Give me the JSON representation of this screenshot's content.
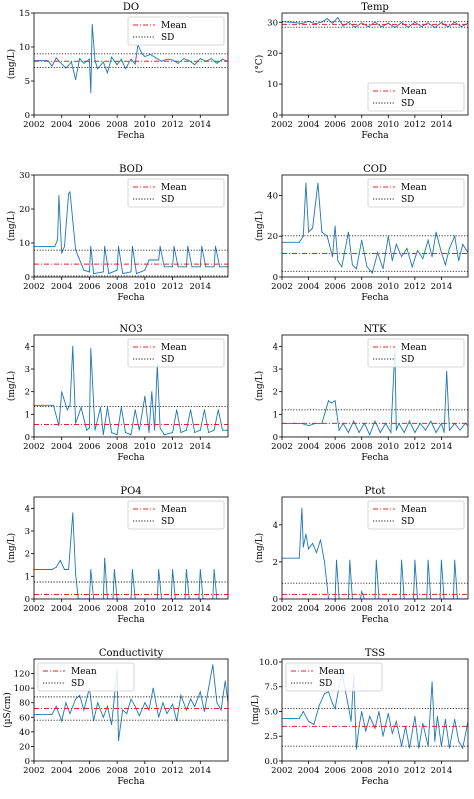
{
  "chart_data": [
    {
      "type": "line",
      "title": "DO",
      "xlabel": "Fecha",
      "ylabel": "(mg/L)",
      "xlim": [
        2002,
        2016
      ],
      "ylim": [
        0,
        15
      ],
      "xticks": [
        "2002",
        "2004",
        "2006",
        "2008",
        "2010",
        "2012",
        "2014"
      ],
      "yticks": [
        "0",
        "5",
        "10",
        "15"
      ],
      "x": [
        2002.0,
        2003.0,
        2003.3,
        2003.6,
        2004.0,
        2004.3,
        2004.7,
        2005.0,
        2005.3,
        2005.6,
        2006.0,
        2006.1,
        2006.2,
        2006.4,
        2006.6,
        2007.0,
        2007.3,
        2007.6,
        2008.0,
        2008.3,
        2008.6,
        2009.0,
        2009.3,
        2009.5,
        2009.8,
        2010.0,
        2010.4,
        2010.8,
        2011.2,
        2011.6,
        2012.0,
        2012.4,
        2012.8,
        2013.2,
        2013.6,
        2014.0,
        2014.4,
        2014.8,
        2015.2,
        2015.6,
        2016.0
      ],
      "y": [
        8.0,
        8.0,
        7.2,
        8.4,
        7.5,
        6.9,
        7.8,
        5.2,
        8.3,
        7.6,
        8.2,
        3.3,
        13.3,
        8.0,
        6.8,
        7.8,
        6.2,
        8.5,
        7.4,
        8.2,
        6.8,
        8.2,
        7.5,
        10.3,
        9.0,
        8.6,
        8.9,
        8.4,
        7.9,
        8.2,
        8.1,
        7.6,
        8.3,
        8.0,
        7.4,
        8.3,
        7.9,
        8.3,
        7.6,
        8.2,
        7.9
      ],
      "mean": 7.9,
      "sd_lines": [
        7.0,
        9.0
      ],
      "legend": {
        "entries": [
          "Mean",
          "SD"
        ],
        "position": "upper-right"
      }
    },
    {
      "type": "line",
      "title": "Temp",
      "xlabel": "Fecha",
      "ylabel": "(°C)",
      "xlim": [
        2002,
        2016
      ],
      "ylim": [
        0,
        33
      ],
      "xticks": [
        "2002",
        "2004",
        "2006",
        "2008",
        "2010",
        "2012",
        "2014"
      ],
      "yticks": [
        "0",
        "10",
        "20",
        "30"
      ],
      "x": [
        2002.0,
        2002.8,
        2003.5,
        2004.0,
        2004.5,
        2005.0,
        2005.4,
        2005.8,
        2006.2,
        2006.6,
        2007.0,
        2007.5,
        2008.0,
        2008.5,
        2009.0,
        2009.5,
        2010.0,
        2010.5,
        2011.0,
        2011.5,
        2012.0,
        2012.5,
        2013.0,
        2013.5,
        2014.0,
        2014.5,
        2015.0,
        2015.5,
        2016.0
      ],
      "y": [
        30.2,
        30.0,
        29.6,
        30.3,
        29.5,
        30.1,
        31.2,
        29.7,
        31.5,
        28.8,
        30.0,
        28.4,
        29.8,
        28.6,
        30.1,
        28.5,
        29.7,
        28.3,
        29.9,
        28.4,
        30.0,
        28.6,
        29.8,
        28.3,
        29.9,
        28.5,
        30.0,
        28.6,
        29.7
      ],
      "mean": 29.3,
      "sd_lines": [
        28.4,
        30.2
      ],
      "legend": {
        "entries": [
          "Mean",
          "SD"
        ],
        "position": "lower-right"
      }
    },
    {
      "type": "line",
      "title": "BOD",
      "xlabel": "Fecha",
      "ylabel": "(mg/L)",
      "xlim": [
        2002,
        2016
      ],
      "ylim": [
        0,
        30
      ],
      "xticks": [
        "2002",
        "2004",
        "2006",
        "2008",
        "2010",
        "2012",
        "2014"
      ],
      "yticks": [
        "0",
        "10",
        "20",
        "30"
      ],
      "x": [
        2002.0,
        2003.5,
        2003.7,
        2003.8,
        2004.0,
        2004.2,
        2004.5,
        2004.6,
        2005.0,
        2005.2,
        2005.6,
        2006.0,
        2006.1,
        2006.3,
        2007.0,
        2007.1,
        2007.4,
        2008.0,
        2008.1,
        2008.4,
        2009.0,
        2009.1,
        2009.4,
        2010.0,
        2010.3,
        2011.0,
        2011.1,
        2011.4,
        2012.0,
        2012.1,
        2012.4,
        2013.0,
        2013.1,
        2013.4,
        2014.0,
        2014.1,
        2014.4,
        2015.0,
        2015.1,
        2015.4,
        2016.0
      ],
      "y": [
        9.0,
        9.0,
        11.0,
        24.0,
        7.0,
        9.0,
        24.5,
        25.0,
        8.0,
        6.0,
        2.0,
        1.5,
        9.0,
        1.0,
        1.5,
        9.0,
        1.0,
        2.0,
        9.0,
        1.0,
        1.5,
        9.0,
        1.0,
        2.0,
        5.0,
        5.0,
        9.0,
        3.0,
        3.0,
        9.0,
        3.0,
        3.0,
        9.0,
        3.0,
        3.0,
        9.0,
        3.0,
        3.0,
        9.0,
        3.0,
        3.0
      ],
      "mean": 3.8,
      "sd_lines": [
        0.3,
        7.9
      ],
      "legend": {
        "entries": [
          "Mean",
          "SD"
        ],
        "position": "upper-right"
      }
    },
    {
      "type": "line",
      "title": "COD",
      "xlabel": "Fecha",
      "ylabel": "(mg/L)",
      "xlim": [
        2002,
        2016
      ],
      "ylim": [
        0,
        50
      ],
      "xticks": [
        "2002",
        "2004",
        "2006",
        "2008",
        "2010",
        "2012",
        "2014"
      ],
      "yticks": [
        "0",
        "20",
        "40"
      ],
      "x": [
        2002.0,
        2003.3,
        2003.6,
        2003.8,
        2004.0,
        2004.3,
        2004.7,
        2005.0,
        2005.4,
        2005.8,
        2006.0,
        2006.2,
        2006.5,
        2007.0,
        2007.3,
        2007.6,
        2008.0,
        2008.4,
        2008.8,
        2009.2,
        2009.6,
        2010.0,
        2010.3,
        2010.6,
        2011.0,
        2011.4,
        2011.8,
        2012.2,
        2012.6,
        2013.0,
        2013.3,
        2013.6,
        2014.0,
        2014.3,
        2014.6,
        2015.0,
        2015.3,
        2015.6,
        2016.0
      ],
      "y": [
        17.0,
        17.0,
        20.0,
        46.0,
        22.0,
        24.0,
        46.0,
        22.0,
        20.0,
        10.0,
        25.0,
        8.0,
        5.0,
        22.0,
        6.0,
        4.0,
        18.0,
        5.0,
        2.0,
        12.0,
        4.0,
        20.0,
        8.0,
        16.0,
        10.0,
        14.0,
        5.0,
        13.0,
        9.0,
        18.0,
        10.0,
        22.0,
        12.0,
        6.0,
        14.0,
        20.0,
        8.0,
        16.0,
        12.0
      ],
      "mean": 11.5,
      "sd_lines": [
        2.8,
        20.2
      ],
      "legend": {
        "entries": [
          "Mean",
          "SD"
        ],
        "position": "upper-right"
      }
    },
    {
      "type": "line",
      "title": "NO3",
      "xlabel": "Fecha",
      "ylabel": "(mg/L)",
      "xlim": [
        2002,
        2016
      ],
      "ylim": [
        0,
        4.5
      ],
      "xticks": [
        "2002",
        "2004",
        "2006",
        "2008",
        "2010",
        "2012",
        "2014"
      ],
      "yticks": [
        "0",
        "1",
        "2",
        "3",
        "4"
      ],
      "x": [
        2002.0,
        2003.4,
        2003.8,
        2004.0,
        2004.4,
        2004.6,
        2004.8,
        2005.0,
        2005.4,
        2005.8,
        2006.0,
        2006.1,
        2006.4,
        2006.8,
        2007.0,
        2007.3,
        2007.6,
        2008.0,
        2008.3,
        2008.6,
        2009.0,
        2009.3,
        2009.6,
        2010.0,
        2010.3,
        2010.5,
        2010.7,
        2010.9,
        2011.1,
        2011.4,
        2012.0,
        2012.3,
        2012.6,
        2013.0,
        2013.3,
        2013.6,
        2014.0,
        2014.3,
        2014.6,
        2015.0,
        2015.3,
        2015.6,
        2016.0
      ],
      "y": [
        1.4,
        1.4,
        0.5,
        2.0,
        1.2,
        1.4,
        4.0,
        0.6,
        1.3,
        0.3,
        0.4,
        3.9,
        0.3,
        1.3,
        0.1,
        1.3,
        0.2,
        0.1,
        1.3,
        0.2,
        0.1,
        1.2,
        0.3,
        1.8,
        0.2,
        2.0,
        0.3,
        3.2,
        0.4,
        0.1,
        0.2,
        1.2,
        0.2,
        0.3,
        1.2,
        0.2,
        0.3,
        1.2,
        0.2,
        0.3,
        1.2,
        0.3,
        0.3
      ],
      "mean": 0.55,
      "sd_lines": [
        0.0,
        1.35
      ],
      "legend": {
        "entries": [
          "Mean",
          "SD"
        ],
        "position": "upper-right"
      }
    },
    {
      "type": "line",
      "title": "NTK",
      "xlabel": "Fecha",
      "ylabel": "(mg/L)",
      "xlim": [
        2002,
        2016
      ],
      "ylim": [
        0,
        4.5
      ],
      "xticks": [
        "2002",
        "2004",
        "2006",
        "2008",
        "2010",
        "2012",
        "2014"
      ],
      "yticks": [
        "0",
        "1",
        "2",
        "3",
        "4"
      ],
      "x": [
        2002.0,
        2003.5,
        2004.0,
        2004.5,
        2005.0,
        2005.5,
        2005.7,
        2006.0,
        2006.3,
        2006.6,
        2007.0,
        2007.4,
        2007.8,
        2008.2,
        2008.6,
        2009.0,
        2009.4,
        2009.8,
        2010.2,
        2010.5,
        2010.6,
        2010.8,
        2011.2,
        2011.6,
        2012.0,
        2012.4,
        2012.8,
        2013.2,
        2013.6,
        2014.0,
        2014.2,
        2014.4,
        2014.6,
        2015.0,
        2015.4,
        2015.8,
        2016.0
      ],
      "y": [
        0.6,
        0.6,
        0.5,
        0.6,
        0.6,
        1.6,
        1.5,
        1.6,
        0.3,
        0.6,
        0.2,
        0.7,
        0.2,
        0.6,
        0.1,
        0.7,
        0.2,
        0.6,
        0.2,
        3.9,
        0.3,
        0.6,
        0.2,
        0.7,
        0.2,
        0.6,
        0.3,
        0.7,
        0.2,
        0.6,
        0.2,
        2.9,
        0.3,
        0.6,
        0.3,
        0.6,
        0.5
      ],
      "mean": 0.6,
      "sd_lines": [
        0.0,
        1.2
      ],
      "legend": {
        "entries": [
          "Mean",
          "SD"
        ],
        "position": "upper-right"
      }
    },
    {
      "type": "line",
      "title": "PO4",
      "xlabel": "Fecha",
      "ylabel": "(mg/L)",
      "xlim": [
        2002,
        2016
      ],
      "ylim": [
        0,
        4.5
      ],
      "xticks": [
        "2002",
        "2004",
        "2006",
        "2008",
        "2010",
        "2012",
        "2014"
      ],
      "yticks": [
        "0",
        "1",
        "2",
        "3",
        "4"
      ],
      "x": [
        2002.0,
        2003.3,
        2003.6,
        2003.9,
        2004.2,
        2004.5,
        2004.8,
        2005.0,
        2005.2,
        2006.0,
        2006.1,
        2006.3,
        2007.0,
        2007.1,
        2007.3,
        2007.7,
        2007.8,
        2008.0,
        2009.0,
        2009.1,
        2009.3,
        2010.9,
        2011.0,
        2011.2,
        2011.9,
        2012.0,
        2012.2,
        2012.9,
        2013.0,
        2013.2,
        2013.9,
        2014.0,
        2014.2,
        2014.9,
        2015.0,
        2015.2,
        2016.0
      ],
      "y": [
        1.3,
        1.3,
        1.4,
        1.7,
        1.3,
        1.3,
        3.8,
        1.1,
        0.0,
        0.0,
        1.3,
        0.0,
        0.0,
        1.8,
        0.0,
        0.0,
        1.3,
        0.0,
        0.0,
        1.3,
        0.0,
        0.0,
        1.3,
        0.0,
        0.0,
        1.3,
        0.0,
        0.0,
        1.3,
        0.0,
        0.0,
        1.3,
        0.0,
        0.0,
        1.3,
        0.0,
        0.0
      ],
      "mean": 0.2,
      "sd_lines": [
        0.0,
        0.75
      ],
      "legend": {
        "entries": [
          "Mean",
          "SD"
        ],
        "position": "upper-right"
      }
    },
    {
      "type": "line",
      "title": "Ptot",
      "xlabel": "Fecha",
      "ylabel": "(mg/L)",
      "xlim": [
        2002,
        2016
      ],
      "ylim": [
        0,
        5.5
      ],
      "xticks": [
        "2002",
        "2004",
        "2006",
        "2008",
        "2010",
        "2012",
        "2014"
      ],
      "yticks": [
        "0",
        "2",
        "4"
      ],
      "x": [
        2002.0,
        2003.3,
        2003.5,
        2003.6,
        2003.8,
        2004.0,
        2004.3,
        2004.6,
        2004.9,
        2005.2,
        2005.5,
        2006.0,
        2006.1,
        2006.3,
        2007.0,
        2007.1,
        2007.3,
        2007.9,
        2008.0,
        2008.2,
        2009.0,
        2009.1,
        2009.3,
        2010.9,
        2011.0,
        2011.2,
        2011.9,
        2012.0,
        2012.2,
        2012.9,
        2013.0,
        2013.2,
        2013.9,
        2014.0,
        2014.2,
        2014.9,
        2015.0,
        2015.2,
        2016.0
      ],
      "y": [
        2.2,
        2.2,
        4.9,
        2.8,
        3.5,
        2.7,
        3.0,
        2.5,
        3.2,
        2.0,
        0.0,
        0.0,
        2.1,
        0.0,
        0.0,
        2.1,
        0.0,
        0.0,
        0.4,
        0.0,
        0.0,
        2.1,
        0.0,
        0.0,
        2.1,
        0.0,
        0.0,
        2.1,
        0.0,
        0.0,
        2.1,
        0.0,
        0.0,
        2.1,
        0.0,
        0.0,
        2.1,
        0.0,
        0.0
      ],
      "mean": 0.25,
      "sd_lines": [
        0.0,
        0.85
      ],
      "legend": {
        "entries": [
          "Mean",
          "SD"
        ],
        "position": "upper-right"
      }
    },
    {
      "type": "line",
      "title": "Conductivity",
      "xlabel": "Fecha",
      "ylabel": "(µS/cm)",
      "xlim": [
        2002,
        2016
      ],
      "ylim": [
        0,
        140
      ],
      "xticks": [
        "2002",
        "2004",
        "2006",
        "2008",
        "2010",
        "2012",
        "2014"
      ],
      "yticks": [
        "0",
        "20",
        "40",
        "60",
        "80",
        "100",
        "120"
      ],
      "x": [
        2002.0,
        2003.3,
        2003.6,
        2004.0,
        2004.3,
        2004.6,
        2005.0,
        2005.3,
        2005.6,
        2006.0,
        2006.3,
        2006.6,
        2007.0,
        2007.3,
        2007.6,
        2008.0,
        2008.1,
        2008.4,
        2008.7,
        2009.0,
        2009.3,
        2009.6,
        2010.0,
        2010.3,
        2010.6,
        2011.0,
        2011.3,
        2011.6,
        2012.0,
        2012.3,
        2012.6,
        2013.0,
        2013.3,
        2013.6,
        2014.0,
        2014.3,
        2014.6,
        2014.9,
        2015.2,
        2015.5,
        2015.8,
        2016.0
      ],
      "y": [
        64,
        64,
        75,
        55,
        80,
        65,
        85,
        90,
        70,
        100,
        55,
        80,
        60,
        75,
        50,
        125,
        28,
        70,
        65,
        85,
        75,
        62,
        80,
        70,
        100,
        60,
        80,
        65,
        78,
        55,
        90,
        70,
        85,
        75,
        95,
        68,
        100,
        132,
        80,
        70,
        110,
        80
      ],
      "mean": 72,
      "sd_lines": [
        56,
        88
      ],
      "legend": {
        "entries": [
          "Mean",
          "SD"
        ],
        "position": "upper-left"
      }
    },
    {
      "type": "line",
      "title": "TSS",
      "xlabel": "Fecha",
      "ylabel": "(mg/L)",
      "xlim": [
        2002,
        2016
      ],
      "ylim": [
        0,
        10.3
      ],
      "xticks": [
        "2002",
        "2004",
        "2006",
        "2008",
        "2010",
        "2012",
        "2014"
      ],
      "yticks": [
        "0.0",
        "2.5",
        "5.0",
        "7.5",
        "10.0"
      ],
      "x": [
        2002.0,
        2003.3,
        2003.6,
        2004.0,
        2004.4,
        2004.8,
        2005.2,
        2005.5,
        2005.8,
        2006.0,
        2006.5,
        2007.0,
        2007.2,
        2007.4,
        2007.6,
        2007.8,
        2008.0,
        2008.3,
        2008.6,
        2009.0,
        2009.3,
        2009.6,
        2010.0,
        2010.3,
        2010.6,
        2011.0,
        2011.3,
        2011.6,
        2012.0,
        2012.3,
        2012.6,
        2013.0,
        2013.3,
        2013.5,
        2013.7,
        2014.0,
        2014.3,
        2014.6,
        2015.0,
        2015.3,
        2015.6,
        2016.0
      ],
      "y": [
        4.3,
        4.3,
        5.0,
        4.0,
        3.7,
        5.6,
        6.8,
        7.0,
        5.8,
        5.3,
        9.0,
        5.5,
        4.0,
        8.7,
        1.2,
        3.5,
        5.0,
        3.0,
        4.5,
        3.3,
        5.0,
        2.5,
        4.8,
        2.8,
        4.0,
        1.5,
        3.5,
        1.3,
        4.5,
        1.3,
        3.8,
        1.5,
        8.0,
        2.0,
        4.5,
        1.5,
        4.2,
        1.3,
        4.2,
        2.0,
        1.3,
        4.0
      ],
      "mean": 3.5,
      "sd_lines": [
        1.5,
        5.3
      ],
      "legend": {
        "entries": [
          "Mean",
          "SD"
        ],
        "position": "upper-left"
      }
    }
  ],
  "colors": {
    "series": "#1f77b4",
    "mean": "#e8202a",
    "sd": "#222222"
  }
}
